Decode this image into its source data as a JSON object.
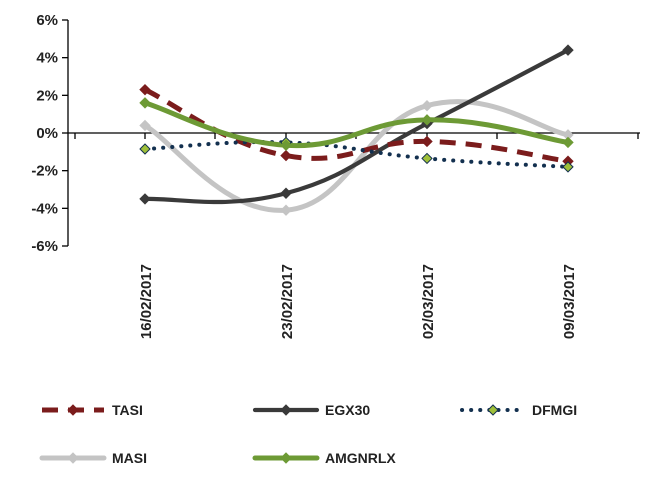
{
  "chart_data": {
    "type": "line",
    "title": "",
    "xlabel": "",
    "ylabel": "",
    "x": [
      "16/02/2017",
      "23/02/2017",
      "02/03/2017",
      "09/03/2017"
    ],
    "y_ticks": [
      "6%",
      "4%",
      "2%",
      "0%",
      "-2%",
      "-4%",
      "-6%"
    ],
    "ylim": [
      -6,
      6
    ],
    "y_unit": "%",
    "grid": false,
    "legend_position": "bottom",
    "series": [
      {
        "name": "TASI",
        "values": [
          2.3,
          -1.2,
          -0.45,
          -1.5
        ],
        "color": "#7b1c1c",
        "style": "dashed",
        "marker": "diamond"
      },
      {
        "name": "EGX30",
        "values": [
          -3.5,
          -3.2,
          0.5,
          4.4
        ],
        "color": "#3a3a3a",
        "style": "solid",
        "marker": "diamond"
      },
      {
        "name": "DFMGI",
        "values": [
          -0.85,
          -0.5,
          -1.35,
          -1.8
        ],
        "color": "#13304f",
        "style": "dotted",
        "marker": "diamond",
        "marker_fill": "#9fc03a"
      },
      {
        "name": "MASI",
        "values": [
          0.4,
          -4.1,
          1.45,
          -0.1
        ],
        "color": "#c4c4c4",
        "style": "solid",
        "marker": "diamond"
      },
      {
        "name": "AMGNRLX",
        "values": [
          1.6,
          -0.65,
          0.7,
          -0.5
        ],
        "color": "#6d9a35",
        "style": "solid",
        "marker": "diamond"
      }
    ]
  }
}
